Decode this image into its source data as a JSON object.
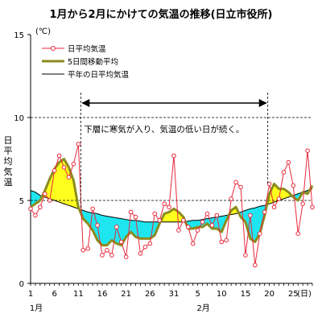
{
  "chart_data": {
    "type": "line",
    "title": "1月から2月にかけての気温の推移(日立市役所)",
    "ylabel": "日平均気温",
    "yunit": "(℃)",
    "xunit": "(日)",
    "ylim": [
      0,
      15
    ],
    "yticks": [
      0,
      5,
      10,
      15
    ],
    "dashed_gridlines": [
      5,
      10
    ],
    "month_labels": [
      {
        "label": "1月",
        "day_index": 1
      },
      {
        "label": "2月",
        "day_index": 36
      }
    ],
    "xticks": [
      {
        "label": "1",
        "day_index": 1
      },
      {
        "label": "6",
        "day_index": 6
      },
      {
        "label": "11",
        "day_index": 11
      },
      {
        "label": "16",
        "day_index": 16
      },
      {
        "label": "21",
        "day_index": 21
      },
      {
        "label": "26",
        "day_index": 26
      },
      {
        "label": "31",
        "day_index": 31
      },
      {
        "label": "5",
        "day_index": 36
      },
      {
        "label": "10",
        "day_index": 41
      },
      {
        "label": "15",
        "day_index": 46
      },
      {
        "label": "20",
        "day_index": 51
      },
      {
        "label": "25",
        "day_index": 56
      }
    ],
    "x_range": [
      1,
      60
    ],
    "legend": {
      "placement": "top-left",
      "entries": [
        "日平均気温",
        "5日間移動平均",
        "平年の日平均気温"
      ]
    },
    "annotation": {
      "text": "下層に寒気が入り、気温の低い日が続く。",
      "from_day_index": 11,
      "to_day_index": 50
    },
    "colors": {
      "daily": "#e8283c",
      "moving_average": "#8c8c1e",
      "normal": "#000000",
      "above_normal_fill": "#ffff1e",
      "below_normal_fill": "#1ee6f0"
    },
    "series": [
      {
        "name": "日平均気温",
        "x": [
          1,
          2,
          3,
          4,
          5,
          6,
          7,
          8,
          9,
          10,
          11,
          12,
          13,
          14,
          15,
          16,
          17,
          18,
          19,
          20,
          21,
          22,
          23,
          24,
          25,
          26,
          27,
          28,
          29,
          30,
          31,
          32,
          33,
          34,
          35,
          36,
          37,
          38,
          39,
          40,
          41,
          42,
          43,
          44,
          45,
          46,
          47,
          48,
          49,
          50,
          51,
          52,
          53,
          54,
          55,
          56,
          57,
          58,
          59,
          60
        ],
        "values": [
          4.5,
          4.1,
          4.6,
          5.4,
          5.0,
          6.8,
          7.7,
          7.0,
          6.4,
          7.2,
          8.4,
          2.0,
          2.1,
          4.5,
          3.5,
          1.7,
          2.0,
          1.7,
          3.4,
          2.5,
          1.6,
          4.3,
          4.0,
          1.8,
          2.2,
          2.4,
          4.2,
          3.8,
          4.8,
          4.6,
          7.7,
          3.2,
          3.8,
          3.4,
          2.4,
          3.2,
          3.7,
          4.2,
          3.5,
          4.1,
          2.5,
          2.6,
          5.1,
          6.1,
          5.8,
          1.7,
          4.1,
          1.1,
          3.0,
          4.3,
          6.0,
          4.6,
          5.1,
          6.7,
          7.3,
          5.9,
          3.0,
          4.8,
          8.0,
          4.6
        ]
      },
      {
        "name": "5日間移動平均",
        "x": [
          1,
          2,
          3,
          4,
          5,
          6,
          7,
          8,
          9,
          10,
          11,
          12,
          13,
          14,
          15,
          16,
          17,
          18,
          19,
          20,
          21,
          22,
          23,
          24,
          25,
          26,
          27,
          28,
          29,
          30,
          31,
          32,
          33,
          34,
          35,
          36,
          37,
          38,
          39,
          40,
          41,
          42,
          43,
          44,
          45,
          46,
          47,
          48,
          49,
          50,
          51,
          52,
          53,
          54,
          55,
          56,
          57,
          58,
          59,
          60
        ],
        "values": [
          4.6,
          4.8,
          5.0,
          5.6,
          6.3,
          6.9,
          7.3,
          7.5,
          7.0,
          6.2,
          4.6,
          3.9,
          3.6,
          3.2,
          2.6,
          2.3,
          2.3,
          2.6,
          2.4,
          2.3,
          2.8,
          3.1,
          2.8,
          2.7,
          2.7,
          2.7,
          2.9,
          3.6,
          4.2,
          4.3,
          4.5,
          4.3,
          4.0,
          3.3,
          3.3,
          3.4,
          3.4,
          3.6,
          3.3,
          3.3,
          3.1,
          3.8,
          4.4,
          4.6,
          4.0,
          3.7,
          2.7,
          2.5,
          3.0,
          4.1,
          5.4,
          6.0,
          5.7,
          5.7,
          5.5,
          5.2,
          5.0,
          5.5,
          5.4,
          5.9
        ]
      },
      {
        "name": "平年の日平均気温",
        "x": [
          1,
          2,
          3,
          4,
          5,
          6,
          7,
          8,
          9,
          10,
          11,
          12,
          13,
          14,
          15,
          16,
          17,
          18,
          19,
          20,
          21,
          22,
          23,
          24,
          25,
          26,
          27,
          28,
          29,
          30,
          31,
          32,
          33,
          34,
          35,
          36,
          37,
          38,
          39,
          40,
          41,
          42,
          43,
          44,
          45,
          46,
          47,
          48,
          49,
          50,
          51,
          52,
          53,
          54,
          55,
          56,
          57,
          58,
          59,
          60
        ],
        "values": [
          5.6,
          5.5,
          5.3,
          5.2,
          5.1,
          5.0,
          4.9,
          4.8,
          4.7,
          4.6,
          4.5,
          4.4,
          4.3,
          4.25,
          4.2,
          4.1,
          4.05,
          4.0,
          3.95,
          3.9,
          3.85,
          3.8,
          3.8,
          3.75,
          3.7,
          3.7,
          3.7,
          3.7,
          3.7,
          3.7,
          3.7,
          3.7,
          3.7,
          3.75,
          3.8,
          3.8,
          3.85,
          3.9,
          3.95,
          4.0,
          4.05,
          4.1,
          4.15,
          4.2,
          4.3,
          4.4,
          4.5,
          4.55,
          4.65,
          4.7,
          4.8,
          4.9,
          5.0,
          5.1,
          5.2,
          5.3,
          5.4,
          5.5,
          5.6,
          5.7
        ]
      }
    ]
  }
}
